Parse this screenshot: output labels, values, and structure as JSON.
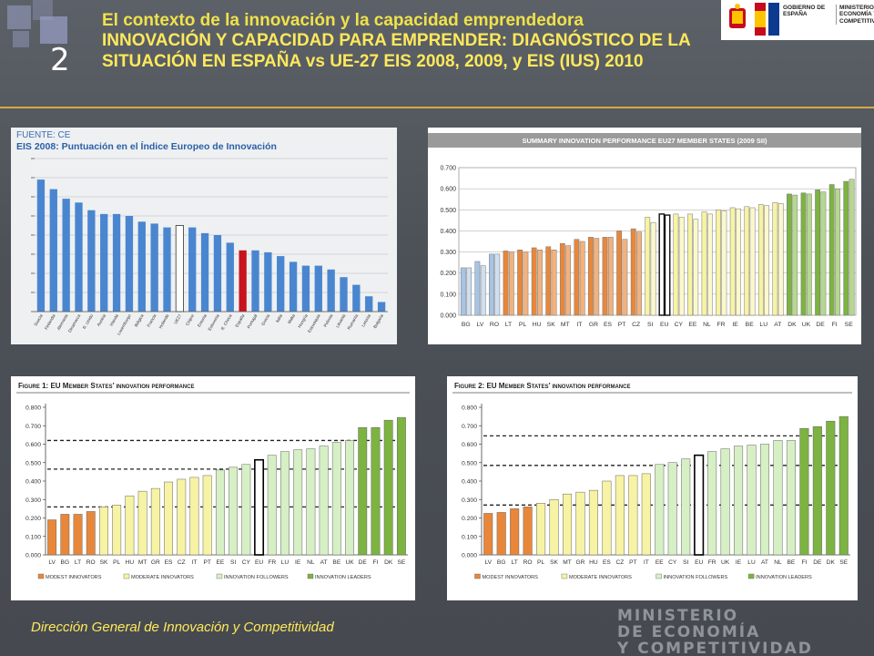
{
  "header": {
    "slide_number": "2",
    "title_line1": "El contexto de la innovación y la capacidad emprendedora",
    "title_line2": "INNOVACIÓN Y CAPACIDAD PARA EMPRENDER: DIAGNÓSTICO DE LA",
    "title_line3": "SITUACIÓN EN ESPAÑA vs UE-27 EIS 2008, 2009, y EIS (IUS) 2010"
  },
  "gov_logo": {
    "text1": "GOBIERNO DE ESPAÑA",
    "text2": "MINISTERIO DE ECONOMÍA Y COMPETITIVIDAD"
  },
  "footer": {
    "text": "Dirección General de Innovación y Competitividad",
    "ministry_lines": [
      "MINISTERIO",
      "DE ECONOMÍA",
      "Y COMPETITIVIDAD"
    ]
  },
  "colors": {
    "blue": "#4a86d0",
    "red": "#c8141e",
    "orange": "#e8873a",
    "light_blue": "#a8c4e4",
    "pale_yellow": "#f7f3a4",
    "pale_green": "#d6efc4",
    "green": "#7cb341"
  },
  "chart_data": [
    {
      "id": "tl",
      "type": "bar",
      "source": "FUENTE: CE",
      "title": "EIS 2008: Puntuación en el Índice Europeo de Innovación",
      "categories": [
        "Suecia",
        "Finlandia",
        "Alemania",
        "Dinamarca",
        "R. Unido",
        "Austria",
        "Irlanda",
        "Luxemburgo",
        "Bélgica",
        "Francia",
        "Holanda",
        "UE27",
        "Chipre",
        "Estonia",
        "Eslovenia",
        "R. Checa",
        "España",
        "Portugal",
        "Grecia",
        "Italia",
        "Malta",
        "Hungría",
        "Eslovaquia",
        "Polonia",
        "Lituania",
        "Rumanía",
        "Letonia",
        "Bulgaria"
      ],
      "values": [
        0.69,
        0.64,
        0.59,
        0.57,
        0.53,
        0.51,
        0.51,
        0.5,
        0.47,
        0.46,
        0.44,
        0.45,
        0.44,
        0.41,
        0.4,
        0.36,
        0.32,
        0.32,
        0.31,
        0.29,
        0.26,
        0.24,
        0.24,
        0.22,
        0.18,
        0.14,
        0.08,
        0.05
      ],
      "highlight": {
        "UE27": "outline",
        "España": "red"
      },
      "ylim": [
        0,
        0.8
      ],
      "grid": true
    },
    {
      "id": "tr",
      "type": "bar",
      "title": "SUMMARY INNOVATION PERFORMANCE EU27 MEMBER STATES (2009 SII)",
      "categories": [
        "BG",
        "LV",
        "RO",
        "LT",
        "PL",
        "HU",
        "SK",
        "MT",
        "IT",
        "GR",
        "ES",
        "PT",
        "CZ",
        "SI",
        "EU",
        "CY",
        "EE",
        "NL",
        "FR",
        "IE",
        "BE",
        "LU",
        "AT",
        "DK",
        "UK",
        "DE",
        "FI",
        "SE"
      ],
      "series": [
        {
          "values": [
            0.225,
            0.255,
            0.29,
            0.305,
            0.31,
            0.32,
            0.325,
            0.34,
            0.36,
            0.37,
            0.37,
            0.4,
            0.41,
            0.465,
            0.48,
            0.48,
            0.48,
            0.49,
            0.5,
            0.51,
            0.515,
            0.525,
            0.535,
            0.575,
            0.58,
            0.595,
            0.62,
            0.635
          ]
        },
        {
          "values": [
            0.225,
            0.235,
            0.29,
            0.3,
            0.3,
            0.31,
            0.31,
            0.33,
            0.35,
            0.365,
            0.37,
            0.36,
            0.395,
            0.44,
            0.475,
            0.465,
            0.455,
            0.48,
            0.495,
            0.505,
            0.51,
            0.52,
            0.53,
            0.57,
            0.575,
            0.585,
            0.6,
            0.645
          ]
        }
      ],
      "group_colors": [
        "light_blue",
        "light_blue",
        "light_blue",
        "orange",
        "orange",
        "orange",
        "orange",
        "orange",
        "orange",
        "orange",
        "orange",
        "orange",
        "orange",
        "pale_yellow",
        "outline",
        "pale_yellow",
        "pale_yellow",
        "pale_yellow",
        "pale_yellow",
        "pale_yellow",
        "pale_yellow",
        "pale_yellow",
        "pale_yellow",
        "green",
        "green",
        "green",
        "green",
        "green"
      ],
      "yticks": [
        "0.000",
        "0.100",
        "0.200",
        "0.300",
        "0.400",
        "0.500",
        "0.600",
        "0.700"
      ],
      "ylim": [
        0,
        0.7
      ],
      "grid": true
    },
    {
      "id": "bl",
      "type": "bar",
      "title": "Figure 1: EU Member States’ innovation performance",
      "categories": [
        "LV",
        "BG",
        "LT",
        "RO",
        "SK",
        "PL",
        "HU",
        "MT",
        "GR",
        "ES",
        "CZ",
        "IT",
        "PT",
        "EE",
        "SI",
        "CY",
        "EU",
        "FR",
        "LU",
        "IE",
        "NL",
        "AT",
        "BE",
        "UK",
        "DE",
        "FI",
        "DK",
        "SE"
      ],
      "values": [
        0.19,
        0.22,
        0.22,
        0.235,
        0.26,
        0.27,
        0.32,
        0.345,
        0.36,
        0.395,
        0.41,
        0.42,
        0.43,
        0.46,
        0.475,
        0.49,
        0.515,
        0.54,
        0.56,
        0.57,
        0.575,
        0.59,
        0.61,
        0.62,
        0.69,
        0.69,
        0.73,
        0.745
      ],
      "group_colors": [
        "orange",
        "orange",
        "orange",
        "orange",
        "pale_yellow",
        "pale_yellow",
        "pale_yellow",
        "pale_yellow",
        "pale_yellow",
        "pale_yellow",
        "pale_yellow",
        "pale_yellow",
        "pale_yellow",
        "pale_green",
        "pale_green",
        "pale_green",
        "outline",
        "pale_green",
        "pale_green",
        "pale_green",
        "pale_green",
        "pale_green",
        "pale_green",
        "pale_green",
        "green",
        "green",
        "green",
        "green"
      ],
      "reference_lines": [
        0.26,
        0.465,
        0.62
      ],
      "yticks": [
        "0.000",
        "0.100",
        "0.200",
        "0.300",
        "0.400",
        "0.500",
        "0.600",
        "0.700",
        "0.800"
      ],
      "ylim": [
        0,
        0.8
      ],
      "legend": [
        "MODEST INNOVATORS",
        "MODERATE INNOVATORS",
        "INNOVATION FOLLOWERS",
        "INNOVATION LEADERS"
      ]
    },
    {
      "id": "br",
      "type": "bar",
      "title": "Figure 2: EU Member States’ innovation performance",
      "categories": [
        "LV",
        "BG",
        "LT",
        "RO",
        "PL",
        "SK",
        "MT",
        "GR",
        "HU",
        "ES",
        "CZ",
        "PT",
        "IT",
        "EE",
        "CY",
        "SI",
        "EU",
        "FR",
        "UK",
        "IE",
        "LU",
        "AT",
        "NL",
        "BE",
        "FI",
        "DE",
        "DK",
        "SE"
      ],
      "values": [
        0.225,
        0.23,
        0.25,
        0.26,
        0.28,
        0.3,
        0.33,
        0.34,
        0.35,
        0.4,
        0.43,
        0.43,
        0.44,
        0.49,
        0.5,
        0.52,
        0.54,
        0.56,
        0.575,
        0.59,
        0.595,
        0.6,
        0.62,
        0.62,
        0.685,
        0.695,
        0.725,
        0.75
      ],
      "group_colors": [
        "orange",
        "orange",
        "orange",
        "orange",
        "pale_yellow",
        "pale_yellow",
        "pale_yellow",
        "pale_yellow",
        "pale_yellow",
        "pale_yellow",
        "pale_yellow",
        "pale_yellow",
        "pale_yellow",
        "pale_green",
        "pale_green",
        "pale_green",
        "outline",
        "pale_green",
        "pale_green",
        "pale_green",
        "pale_green",
        "pale_green",
        "pale_green",
        "pale_green",
        "green",
        "green",
        "green",
        "green"
      ],
      "reference_lines": [
        0.27,
        0.485,
        0.645
      ],
      "yticks": [
        "0.000",
        "0.100",
        "0.200",
        "0.300",
        "0.400",
        "0.500",
        "0.600",
        "0.700",
        "0.800"
      ],
      "ylim": [
        0,
        0.8
      ],
      "legend": [
        "MODEST INNOVATORS",
        "MODERATE INNOVATORS",
        "INNOVATION FOLLOWERS",
        "INNOVATION LEADERS"
      ]
    }
  ]
}
